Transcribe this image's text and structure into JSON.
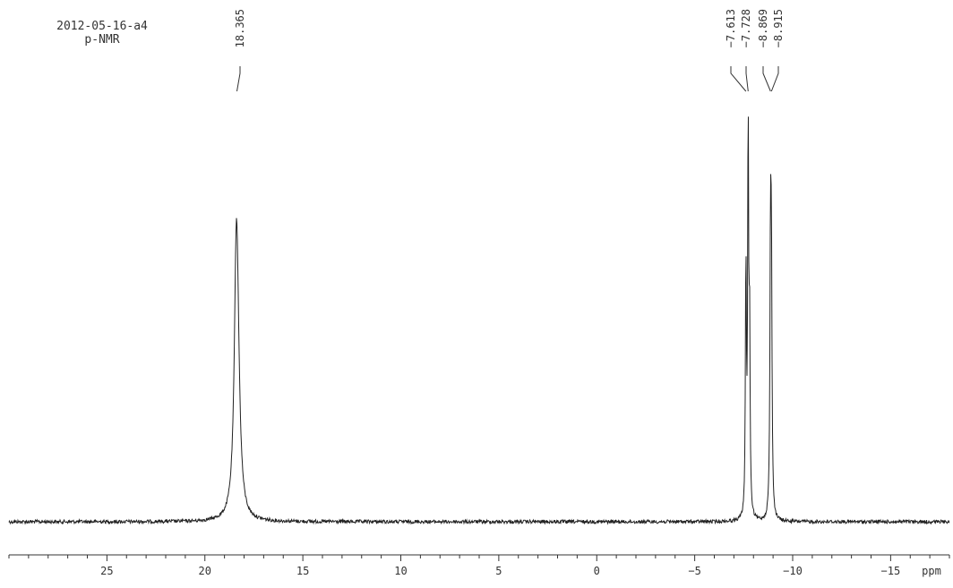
{
  "header": {
    "sample_id": "2012-05-16-a4",
    "experiment": "p-NMR"
  },
  "chart_data": {
    "type": "line",
    "title": "",
    "xlabel": "ppm",
    "ylabel": "",
    "xlim": [
      30,
      -18
    ],
    "x_reversed": true,
    "x_ticks": [
      25,
      20,
      15,
      10,
      5,
      0,
      -5,
      -10,
      -15
    ],
    "x_tick_labels": [
      "25",
      "20",
      "15",
      "10",
      "5",
      "0",
      "−5",
      "−10",
      "−15"
    ],
    "ylim": [
      0,
      1
    ],
    "baseline": 0,
    "peak_labels": [
      "18.365",
      "-7.613",
      "-7.728",
      "-8.869",
      "-8.915"
    ],
    "peaks": [
      {
        "x": 18.4,
        "y": 0.47,
        "width": 0.12
      },
      {
        "x": 18.34,
        "y": 0.31,
        "width": 0.15
      },
      {
        "x": -7.613,
        "y": 0.63,
        "width": 0.03
      },
      {
        "x": -7.728,
        "y": 0.96,
        "width": 0.03
      },
      {
        "x": -7.8,
        "y": 0.45,
        "width": 0.03
      },
      {
        "x": -8.869,
        "y": 0.62,
        "width": 0.035
      },
      {
        "x": -8.915,
        "y": 0.57,
        "width": 0.035
      }
    ],
    "grid": false,
    "legend": "none"
  }
}
